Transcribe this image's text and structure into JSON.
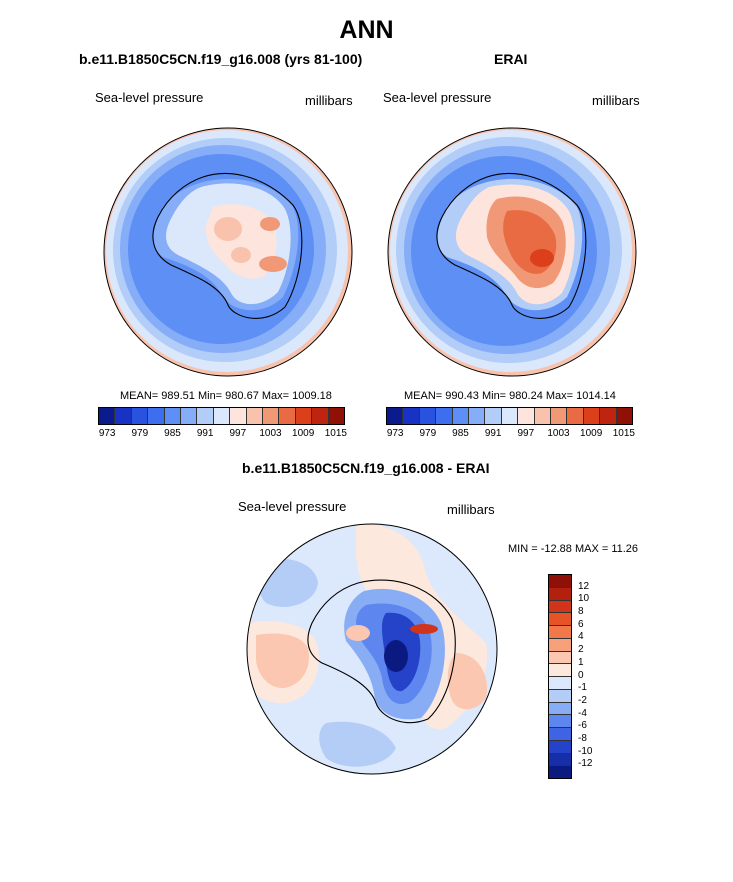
{
  "title": "ANN",
  "panels": [
    {
      "name": "model",
      "title": "b.e11.B1850C5CN.f19_g16.008 (yrs 81-100)",
      "variable": "Sea-level pressure",
      "units": "millibars",
      "stats": "MEAN= 989.51  Min= 980.67  Max= 1009.18"
    },
    {
      "name": "obs",
      "title": "ERAI",
      "variable": "Sea-level pressure",
      "units": "millibars",
      "stats": "MEAN= 990.43  Min= 980.24  Max= 1014.14"
    }
  ],
  "diff": {
    "title": "b.e11.B1850C5CN.f19_g16.008 - ERAI",
    "variable": "Sea-level pressure",
    "units": "millibars",
    "stats": "MIN = -12.88 MAX =  11.26"
  },
  "colorbar_abs": {
    "labels": [
      "973",
      "979",
      "985",
      "991",
      "997",
      "1003",
      "1009",
      "1015"
    ],
    "colors": [
      "#0b1a8c",
      "#1633c4",
      "#2a52e0",
      "#3d6ef0",
      "#5d8ff5",
      "#86adf7",
      "#b1cdf8",
      "#dbe8fb",
      "#fde4dc",
      "#f8c2ad",
      "#f19876",
      "#e96b44",
      "#dc3f1c",
      "#bf2410",
      "#8e1006"
    ]
  },
  "colorbar_diff": {
    "labels": [
      "12",
      "10",
      "8",
      "6",
      "4",
      "2",
      "1",
      "0",
      "-1",
      "-2",
      "-4",
      "-6",
      "-8",
      "-10",
      "-12"
    ],
    "colors": [
      "#8e1006",
      "#b3200e",
      "#d0341a",
      "#e65326",
      "#f17848",
      "#f7a07c",
      "#fbc7b0",
      "#fde8dd",
      "#dce8fb",
      "#b3cdf7",
      "#89adf4",
      "#5d86ee",
      "#3f63e2",
      "#2543c8",
      "#162ea8",
      "#0b1a80"
    ]
  }
}
